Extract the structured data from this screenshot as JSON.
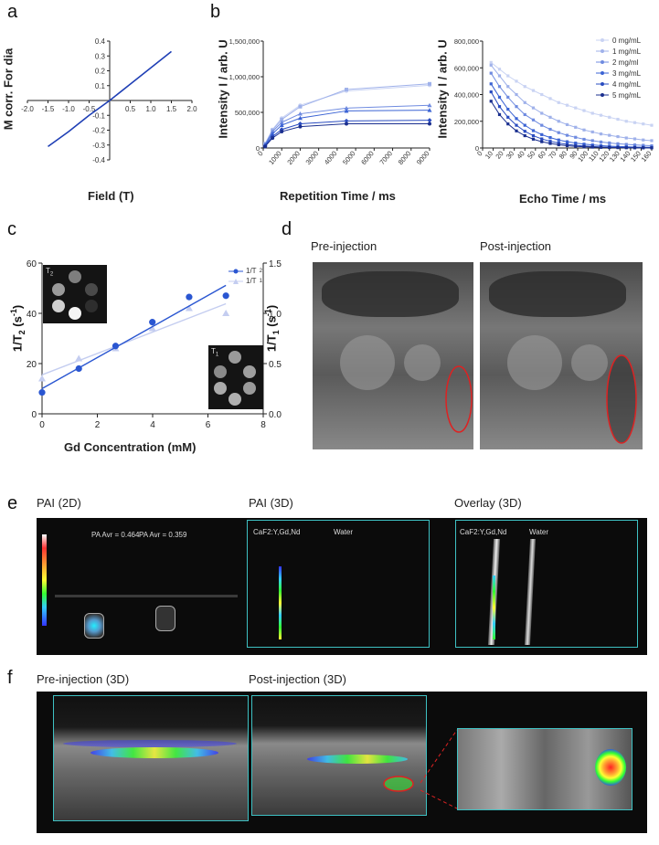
{
  "panels": {
    "a": "a",
    "b": "b",
    "c": "c",
    "d": "d",
    "e": "e",
    "f": "f"
  },
  "colors": {
    "blue_dark": "#1f3fb5",
    "blue_mid": "#3b63d4",
    "blue_light": "#9fb1ea",
    "blue_pale": "#c9d3f3",
    "teal": "#3ec1c3",
    "red_roi": "#d22",
    "dark_bg": "#0b0b0b"
  },
  "chart_data": [
    {
      "id": "a",
      "type": "line",
      "xlabel": "Field (T)",
      "ylabel": "M corr. For dia",
      "xlim": [
        -2.0,
        2.0
      ],
      "ylim": [
        -0.4,
        0.4
      ],
      "x_ticks": [
        "-2.0",
        "-1.5",
        "-1.0",
        "-0.5",
        "0.5",
        "1.0",
        "1.5",
        "2.0"
      ],
      "x_tick_values": [
        -2.0,
        -1.5,
        -1.0,
        -0.5,
        0.5,
        1.0,
        1.5,
        2.0
      ],
      "y_ticks": [
        "0.4",
        "0.3",
        "0.2",
        "0.1",
        "-0.1",
        "-0.2",
        "-0.3",
        "-0.4"
      ],
      "y_tick_values": [
        0.4,
        0.3,
        0.2,
        0.1,
        -0.1,
        -0.2,
        -0.3,
        -0.4
      ],
      "series": [
        {
          "x": [
            -1.5,
            -1.0,
            -0.5,
            0.0,
            0.5,
            1.0,
            1.5
          ],
          "y": [
            -0.31,
            -0.21,
            -0.1,
            0.0,
            0.11,
            0.22,
            0.33
          ]
        }
      ]
    },
    {
      "id": "b1",
      "type": "line",
      "xlabel": "Repetition Time / ms",
      "ylabel": "Intensity I / arb. U",
      "xlim": [
        0,
        9000
      ],
      "ylim": [
        0,
        1500000
      ],
      "x_ticks": [
        "0",
        "1000",
        "2000",
        "3000",
        "4000",
        "5000",
        "6000",
        "7000",
        "8000",
        "9000"
      ],
      "x_tick_values": [
        0,
        1000,
        2000,
        3000,
        4000,
        5000,
        6000,
        7000,
        8000,
        9000
      ],
      "y_ticks": [
        "0",
        "500,000",
        "1,000,000",
        "1,500,000"
      ],
      "y_tick_values": [
        0,
        500000,
        1000000,
        1500000
      ],
      "x": [
        100,
        500,
        1000,
        2000,
        4500,
        9000
      ],
      "series": [
        {
          "values": [
            60000,
            260000,
            420000,
            600000,
            800000,
            880000
          ]
        },
        {
          "values": [
            60000,
            250000,
            400000,
            580000,
            820000,
            900000
          ]
        },
        {
          "values": [
            50000,
            230000,
            360000,
            480000,
            560000,
            600000
          ]
        },
        {
          "values": [
            40000,
            200000,
            320000,
            420000,
            520000,
            530000
          ]
        },
        {
          "values": [
            30000,
            160000,
            260000,
            340000,
            380000,
            390000
          ]
        },
        {
          "values": [
            20000,
            140000,
            230000,
            300000,
            340000,
            340000
          ]
        }
      ]
    },
    {
      "id": "b2",
      "type": "line",
      "xlabel": "Echo Time / ms",
      "ylabel": "Intensity I / arb. U",
      "xlim": [
        0,
        160
      ],
      "ylim": [
        0,
        800000
      ],
      "x_ticks": [
        "0",
        "10",
        "20",
        "30",
        "40",
        "50",
        "60",
        "70",
        "80",
        "90",
        "100",
        "110",
        "120",
        "130",
        "140",
        "150",
        "160"
      ],
      "x_tick_values": [
        0,
        10,
        20,
        30,
        40,
        50,
        60,
        70,
        80,
        90,
        100,
        110,
        120,
        130,
        140,
        150,
        160
      ],
      "y_ticks": [
        "0",
        "200,000",
        "400,000",
        "600,000",
        "800,000"
      ],
      "y_tick_values": [
        0,
        200000,
        400000,
        600000,
        800000
      ],
      "legend": [
        "0 mg/mL",
        "1 mg/mL",
        "2 mg/ml",
        "3 mg/mL",
        "4 mg/mL",
        "5 mg/mL"
      ],
      "legend_position": "top-right",
      "x": [
        8,
        16,
        24,
        32,
        40,
        48,
        56,
        64,
        72,
        80,
        88,
        96,
        104,
        112,
        120,
        128,
        136,
        144,
        152,
        160
      ],
      "series": [
        {
          "name": "0 mg/mL",
          "values": [
            640000,
            590000,
            540000,
            500000,
            460000,
            430000,
            400000,
            370000,
            340000,
            320000,
            300000,
            280000,
            260000,
            245000,
            230000,
            215000,
            200000,
            190000,
            180000,
            170000
          ]
        },
        {
          "name": "1 mg/mL",
          "values": [
            620000,
            540000,
            460000,
            400000,
            340000,
            300000,
            260000,
            230000,
            200000,
            175000,
            155000,
            135000,
            120000,
            105000,
            95000,
            85000,
            75000,
            68000,
            60000,
            55000
          ]
        },
        {
          "name": "2 mg/ml",
          "values": [
            560000,
            460000,
            380000,
            310000,
            250000,
            210000,
            170000,
            140000,
            115000,
            95000,
            80000,
            65000,
            55000,
            45000,
            38000,
            32000,
            27000,
            23000,
            20000,
            17000
          ]
        },
        {
          "name": "3 mg/mL",
          "values": [
            480000,
            380000,
            290000,
            220000,
            170000,
            130000,
            100000,
            78000,
            60000,
            47000,
            37000,
            29000,
            23000,
            18000,
            14000,
            11000,
            9000,
            7000,
            6000,
            5000
          ]
        },
        {
          "name": "4 mg/mL",
          "values": [
            420000,
            310000,
            230000,
            170000,
            125000,
            92000,
            68000,
            50000,
            37000,
            27000,
            20000,
            15000,
            11000,
            8000,
            6000,
            5000,
            4000,
            3000,
            2500,
            2000
          ]
        },
        {
          "name": "5 mg/mL",
          "values": [
            350000,
            250000,
            180000,
            128000,
            92000,
            66000,
            47000,
            34000,
            24000,
            17000,
            12000,
            9000,
            6500,
            4700,
            3400,
            2500,
            1800,
            1300,
            1000,
            800
          ]
        }
      ]
    },
    {
      "id": "c",
      "type": "scatter",
      "xlabel": "Gd Concentration (mM)",
      "ylabel_left": "1/T",
      "ylabel_left_sub": "2",
      "ylabel_left_unit": "(s",
      "ylabel_left_sup": "-1",
      "ylabel_right": "1/T",
      "ylabel_right_sub": "1",
      "ylabel_right_unit": "(s",
      "ylabel_right_sup": "-1",
      "xlim": [
        0,
        8
      ],
      "ylim_left": [
        0,
        60
      ],
      "ylim_right": [
        0,
        1.5
      ],
      "x_ticks": [
        "0",
        "2",
        "4",
        "6",
        "8"
      ],
      "x_tick_values": [
        0,
        2,
        4,
        6,
        8
      ],
      "y_left_ticks": [
        "0",
        "20",
        "40",
        "60"
      ],
      "y_left_tick_values": [
        0,
        20,
        40,
        60
      ],
      "y_right_ticks": [
        "0.0",
        "0.5",
        "1.0",
        "1.5"
      ],
      "y_right_tick_values": [
        0,
        0.5,
        1.0,
        1.5
      ],
      "legend": [
        "1/T",
        "1/T"
      ],
      "legend_sub": [
        "2",
        "1"
      ],
      "series": [
        {
          "name": "1/T2",
          "x": [
            0,
            1.33,
            2.66,
            3.99,
            5.32,
            6.65
          ],
          "y": [
            8.5,
            18,
            27,
            36.5,
            46.5,
            47
          ]
        },
        {
          "name": "1/T1",
          "x": [
            0,
            1.33,
            2.66,
            3.99,
            5.32,
            6.65
          ],
          "y": [
            0.35,
            0.55,
            0.65,
            0.85,
            1.05,
            1.0
          ],
          "axis": "right"
        }
      ],
      "inset_labels": [
        "T",
        "T"
      ],
      "inset_subs": [
        "2",
        "1"
      ]
    }
  ],
  "d": {
    "pre": "Pre-injection",
    "post": "Post-injection"
  },
  "e": {
    "pai2d": "PAI (2D)",
    "pai3d": "PAI (3D)",
    "overlay": "Overlay (3D)",
    "pa_avr_1": "PA Avr = 0.464",
    "pa_avr_2": "PA Avr = 0.359",
    "caf2_label": "CaF2:Y,Gd,Nd",
    "water_label": "Water"
  },
  "f": {
    "pre": "Pre-injection (3D)",
    "post": "Post-injection (3D)"
  }
}
